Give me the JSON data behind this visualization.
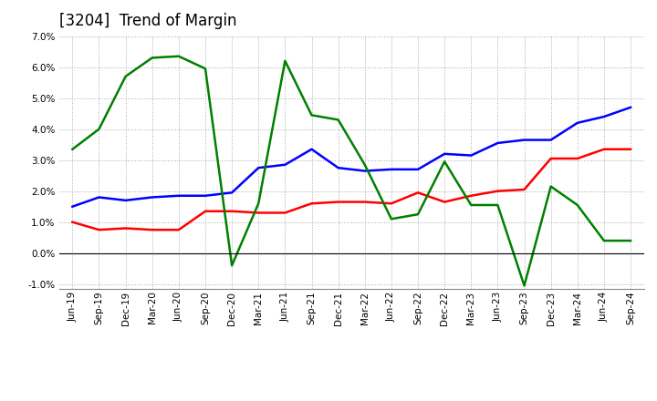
{
  "title": "[3204]  Trend of Margin",
  "x_labels": [
    "Jun-19",
    "Sep-19",
    "Dec-19",
    "Mar-20",
    "Jun-20",
    "Sep-20",
    "Dec-20",
    "Mar-21",
    "Jun-21",
    "Sep-21",
    "Dec-21",
    "Mar-22",
    "Jun-22",
    "Sep-22",
    "Dec-22",
    "Mar-23",
    "Jun-23",
    "Sep-23",
    "Dec-23",
    "Mar-24",
    "Jun-24",
    "Sep-24"
  ],
  "ordinary_income": [
    1.5,
    1.8,
    1.7,
    1.8,
    1.85,
    1.85,
    1.95,
    2.75,
    2.85,
    3.35,
    2.75,
    2.65,
    2.7,
    2.7,
    3.2,
    3.15,
    3.55,
    3.65,
    3.65,
    4.2,
    4.4,
    4.7
  ],
  "net_income": [
    1.0,
    0.75,
    0.8,
    0.75,
    0.75,
    1.35,
    1.35,
    1.3,
    1.3,
    1.6,
    1.65,
    1.65,
    1.6,
    1.95,
    1.65,
    1.85,
    2.0,
    2.05,
    3.05,
    3.05,
    3.35,
    3.35
  ],
  "operating_cashflow": [
    3.35,
    4.0,
    5.7,
    6.3,
    6.35,
    5.95,
    -0.4,
    1.6,
    6.2,
    4.45,
    4.3,
    2.85,
    1.1,
    1.25,
    2.95,
    1.55,
    1.55,
    -1.05,
    2.15,
    1.55,
    0.4,
    0.4
  ],
  "ylim_min": -1.0,
  "ylim_max": 7.0,
  "yticks": [
    -1.0,
    0.0,
    1.0,
    2.0,
    3.0,
    4.0,
    5.0,
    6.0,
    7.0
  ],
  "ordinary_income_color": "#0000FF",
  "net_income_color": "#FF0000",
  "operating_cashflow_color": "#008000",
  "background_color": "#FFFFFF",
  "grid_color": "#AAAAAA",
  "title_fontsize": 12,
  "tick_fontsize": 7.5,
  "legend_fontsize": 9
}
